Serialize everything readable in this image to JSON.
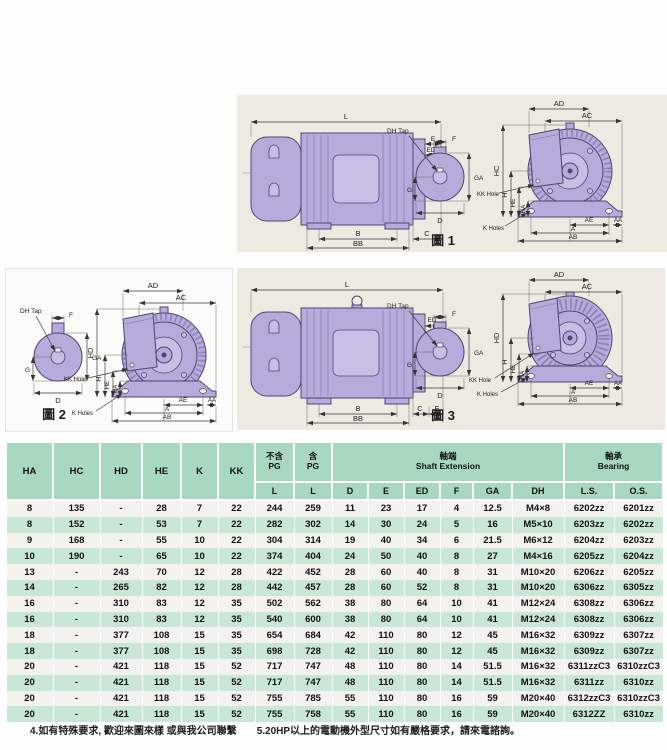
{
  "page": {
    "notes": {
      "note4": "4.如有特殊要求, 歡迎來圖來樣 或與我公司聯繫",
      "note5": "5.20HP以上的電動機外型尺寸如有嚴格要求，請來電諮詢。"
    }
  },
  "colors": {
    "table_header_green": "#a9d8c0",
    "table_row_green": "#c9e7d5",
    "table_row_light": "#f3f2ee",
    "panel_beige": "#edeae2",
    "motor_lavender": "#b7abdb"
  },
  "figures": {
    "captions": {
      "fig1": "圖 1",
      "fig2": "圖 2",
      "fig3": "圖 3"
    },
    "dims": {
      "L": "L",
      "B": "B",
      "BB": "BB",
      "C": "C",
      "E": "E",
      "ED": "ED",
      "F": "F",
      "G": "G",
      "GA": "GA",
      "D": "D",
      "DH_TAP": "DH Tap",
      "AD": "AD",
      "AC": "AC",
      "HC": "HC",
      "HD": "HD",
      "H": "H",
      "HE": "HE",
      "HA": "HA",
      "AE": "AE",
      "A": "A",
      "AB": "AB",
      "AA": "AA",
      "KK_HOLE": "KK Hole",
      "K_HOLES": "K Holes"
    }
  },
  "table": {
    "col_headers": [
      "HA",
      "HC",
      "HD",
      "HE",
      "K",
      "KK"
    ],
    "pg_excl": {
      "top": "不含",
      "bottom": "PG",
      "sub": "L"
    },
    "pg_incl": {
      "top": "含",
      "bottom": "PG",
      "sub": "L"
    },
    "shaft_group": {
      "cn": "軸端",
      "en": "Shaft Extension",
      "subs": [
        "D",
        "E",
        "ED",
        "F",
        "GA",
        "DH"
      ]
    },
    "bearing_group": {
      "cn": "軸承",
      "en": "Bearing",
      "subs": [
        "L.S.",
        "O.S."
      ]
    },
    "rows": [
      [
        "8",
        "135",
        "-",
        "28",
        "7",
        "22",
        "244",
        "259",
        "11",
        "23",
        "17",
        "4",
        "12.5",
        "M4×8",
        "6202zz",
        "6201zz"
      ],
      [
        "8",
        "152",
        "-",
        "53",
        "7",
        "22",
        "282",
        "302",
        "14",
        "30",
        "24",
        "5",
        "16",
        "M5×10",
        "6203zz",
        "6202zz"
      ],
      [
        "9",
        "168",
        "-",
        "55",
        "10",
        "22",
        "304",
        "314",
        "19",
        "40",
        "34",
        "6",
        "21.5",
        "M6×12",
        "6204zz",
        "6203zz"
      ],
      [
        "10",
        "190",
        "-",
        "65",
        "10",
        "22",
        "374",
        "404",
        "24",
        "50",
        "40",
        "8",
        "27",
        "M4×16",
        "6205zz",
        "6204zz"
      ],
      [
        "13",
        "-",
        "243",
        "70",
        "12",
        "28",
        "422",
        "452",
        "28",
        "60",
        "40",
        "8",
        "31",
        "M10×20",
        "6206zz",
        "6205zz"
      ],
      [
        "14",
        "-",
        "265",
        "82",
        "12",
        "28",
        "442",
        "457",
        "28",
        "60",
        "52",
        "8",
        "31",
        "M10×20",
        "6306zz",
        "6305zz"
      ],
      [
        "16",
        "-",
        "310",
        "83",
        "12",
        "35",
        "502",
        "562",
        "38",
        "80",
        "64",
        "10",
        "41",
        "M12×24",
        "6308zz",
        "6306zz"
      ],
      [
        "16",
        "-",
        "310",
        "83",
        "12",
        "35",
        "540",
        "600",
        "38",
        "80",
        "64",
        "10",
        "41",
        "M12×24",
        "6308zz",
        "6306zz"
      ],
      [
        "18",
        "-",
        "377",
        "108",
        "15",
        "35",
        "654",
        "684",
        "42",
        "110",
        "80",
        "12",
        "45",
        "M16×32",
        "6309zz",
        "6307zz"
      ],
      [
        "18",
        "-",
        "377",
        "108",
        "15",
        "35",
        "698",
        "728",
        "42",
        "110",
        "80",
        "12",
        "45",
        "M16×32",
        "6309zz",
        "6307zz"
      ],
      [
        "20",
        "-",
        "421",
        "118",
        "15",
        "52",
        "717",
        "747",
        "48",
        "110",
        "80",
        "14",
        "51.5",
        "M16×32",
        "6311zzC3",
        "6310zzC3"
      ],
      [
        "20",
        "-",
        "421",
        "118",
        "15",
        "52",
        "717",
        "747",
        "48",
        "110",
        "80",
        "14",
        "51.5",
        "M16×32",
        "6311zz",
        "6310zz"
      ],
      [
        "20",
        "-",
        "421",
        "118",
        "15",
        "52",
        "755",
        "785",
        "55",
        "110",
        "80",
        "16",
        "59",
        "M20×40",
        "6312zzC3",
        "6310zzC3"
      ],
      [
        "20",
        "-",
        "421",
        "118",
        "15",
        "52",
        "755",
        "758",
        "55",
        "110",
        "80",
        "16",
        "59",
        "M20×40",
        "6312ZZ",
        "6310zz"
      ]
    ]
  }
}
